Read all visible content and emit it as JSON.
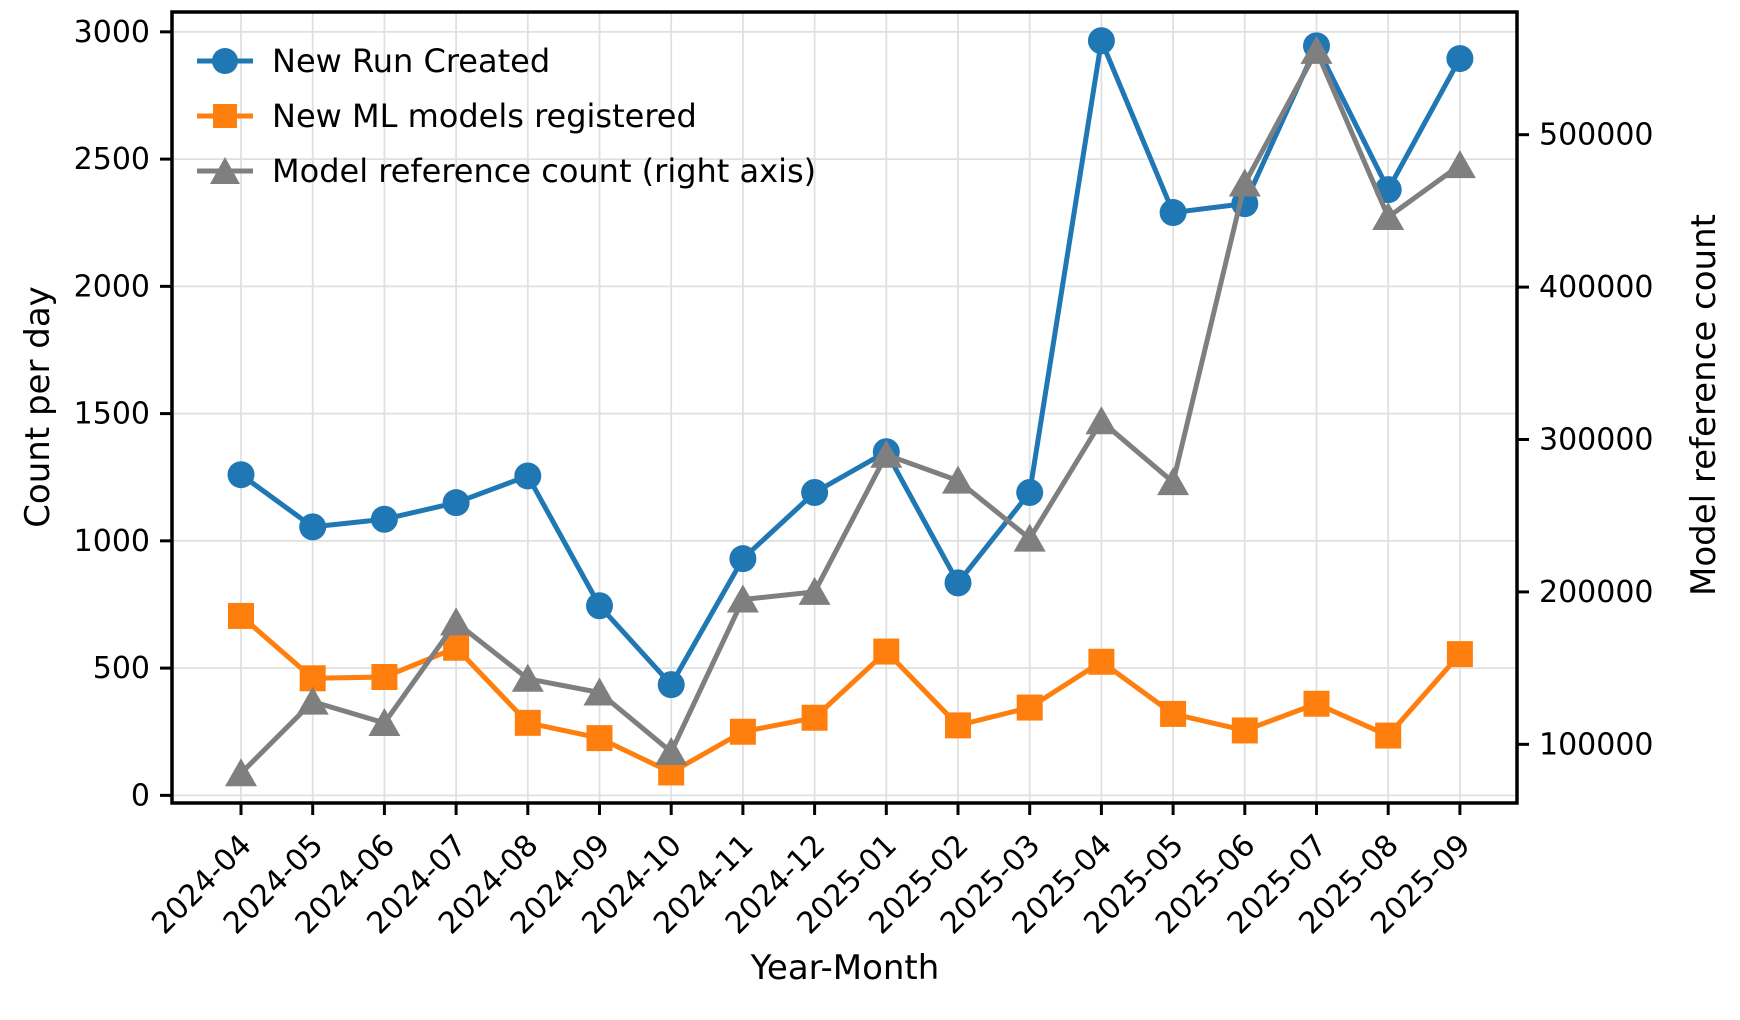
{
  "figure": {
    "background": "#ffffff"
  },
  "chart_data": {
    "type": "line",
    "title": "",
    "xlabel": "Year-Month",
    "ylabel_left": "Count per day",
    "ylabel_right": "Model reference count",
    "grid": true,
    "legend_position": "upper left",
    "categories": [
      "2024-04",
      "2024-05",
      "2024-06",
      "2024-07",
      "2024-08",
      "2024-09",
      "2024-10",
      "2024-11",
      "2024-12",
      "2025-01",
      "2025-02",
      "2025-03",
      "2025-04",
      "2025-05",
      "2025-06",
      "2025-07",
      "2025-08",
      "2025-09"
    ],
    "left_axis": {
      "ticks": [
        0,
        500,
        1000,
        1500,
        2000,
        2500,
        3000
      ],
      "range": [
        -30,
        3078
      ]
    },
    "right_axis": {
      "ticks": [
        100000,
        200000,
        300000,
        400000,
        500000
      ],
      "range": [
        61500,
        580500
      ]
    },
    "series": [
      {
        "name": "New Run Created",
        "axis": "left",
        "color": "#1f77b4",
        "marker": "circle",
        "values": [
          1260,
          1055,
          1085,
          1150,
          1255,
          745,
          435,
          930,
          1190,
          1350,
          835,
          1190,
          2965,
          2290,
          2325,
          2945,
          2380,
          2895
        ]
      },
      {
        "name": "New ML models registered",
        "axis": "left",
        "color": "#ff7f0e",
        "marker": "square",
        "values": [
          705,
          460,
          465,
          580,
          285,
          225,
          90,
          250,
          305,
          565,
          275,
          345,
          525,
          320,
          255,
          360,
          235,
          555
        ]
      },
      {
        "name": "Model reference count (right axis)",
        "axis": "right",
        "color": "#7f7f7f",
        "marker": "triangle",
        "values": [
          81000,
          128000,
          114000,
          180000,
          143000,
          134000,
          95000,
          195000,
          200000,
          290000,
          273000,
          235000,
          312000,
          272000,
          468000,
          555000,
          446000,
          480000
        ]
      }
    ],
    "style": {
      "grid_color": "#e0e0e0",
      "spine_color": "#000000",
      "text_color": "#000000"
    }
  }
}
